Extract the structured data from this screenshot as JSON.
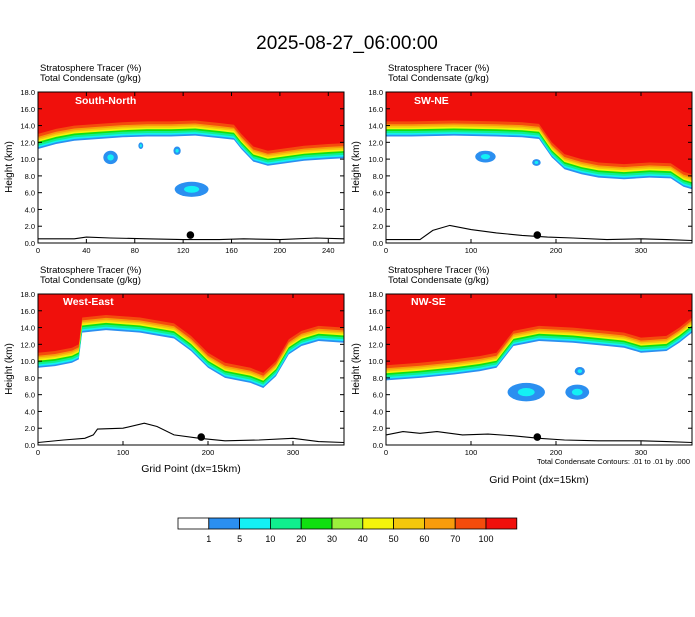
{
  "figure": {
    "title": "2025-08-27_06:00:00",
    "footnote": "Total Condensate Contours: .01 to .01 by .000"
  },
  "colors": {
    "levels": [
      "#ffffff",
      "#2b8ff0",
      "#14f0f4",
      "#10ef8e",
      "#10e010",
      "#9cf03c",
      "#f4f40c",
      "#f4c80c",
      "#f89c0c",
      "#f44c0c",
      "#f0100c"
    ],
    "terrain": "#000000",
    "marker": "#000000"
  },
  "chart_data": [
    {
      "type": "heatmap",
      "panel_label": "South-North",
      "header_lines": [
        "Stratosphere Tracer   (%)",
        "Total Condensate   (g/kg)"
      ],
      "ylabel": "Height (km)",
      "xlabel": "",
      "ylim": [
        0,
        18
      ],
      "xlim": [
        0,
        253
      ],
      "xticks": [
        0,
        40,
        80,
        120,
        160,
        200,
        240
      ],
      "yticks": [
        0.0,
        2.0,
        4.0,
        6.0,
        8.0,
        10.0,
        12.0,
        14.0,
        16.0,
        18.0
      ],
      "marker_x": 126,
      "tropopause": [
        [
          0,
          13.0
        ],
        [
          15,
          13.6
        ],
        [
          30,
          14.0
        ],
        [
          50,
          14.2
        ],
        [
          70,
          14.4
        ],
        [
          90,
          14.5
        ],
        [
          110,
          14.5
        ],
        [
          130,
          14.6
        ],
        [
          150,
          14.3
        ],
        [
          162,
          14.1
        ],
        [
          168,
          13.0
        ],
        [
          178,
          11.5
        ],
        [
          190,
          11.0
        ],
        [
          205,
          11.3
        ],
        [
          220,
          11.6
        ],
        [
          240,
          11.8
        ],
        [
          253,
          11.9
        ]
      ],
      "terrain": [
        [
          0,
          0.5
        ],
        [
          30,
          0.5
        ],
        [
          40,
          0.7
        ],
        [
          60,
          0.6
        ],
        [
          90,
          0.5
        ],
        [
          120,
          0.4
        ],
        [
          150,
          0.4
        ],
        [
          170,
          0.5
        ],
        [
          200,
          0.4
        ],
        [
          230,
          0.6
        ],
        [
          253,
          0.5
        ]
      ],
      "blobs": [
        [
          127,
          6.4,
          14,
          0.9
        ],
        [
          60,
          10.2,
          6,
          0.8
        ],
        [
          115,
          11.0,
          3,
          0.5
        ],
        [
          85,
          11.6,
          2,
          0.4
        ]
      ]
    },
    {
      "type": "heatmap",
      "panel_label": "SW-NE",
      "header_lines": [
        "Stratosphere Tracer   (%)",
        "Total Condensate   (g/kg)"
      ],
      "ylabel": "Height (km)",
      "xlabel": "",
      "ylim": [
        0,
        18
      ],
      "xlim": [
        0,
        360
      ],
      "xticks": [
        0,
        100,
        200,
        300
      ],
      "yticks": [
        0.0,
        2.0,
        4.0,
        6.0,
        8.0,
        10.0,
        12.0,
        14.0,
        16.0,
        18.0
      ],
      "marker_x": 178,
      "tropopause": [
        [
          0,
          14.5
        ],
        [
          30,
          14.5
        ],
        [
          80,
          14.6
        ],
        [
          130,
          14.5
        ],
        [
          160,
          14.4
        ],
        [
          180,
          14.2
        ],
        [
          195,
          12.0
        ],
        [
          210,
          10.6
        ],
        [
          230,
          10.0
        ],
        [
          250,
          9.6
        ],
        [
          280,
          9.4
        ],
        [
          310,
          9.6
        ],
        [
          335,
          9.5
        ],
        [
          350,
          8.5
        ],
        [
          360,
          8.2
        ]
      ],
      "terrain": [
        [
          0,
          0.4
        ],
        [
          40,
          0.4
        ],
        [
          55,
          1.5
        ],
        [
          75,
          2.1
        ],
        [
          100,
          1.6
        ],
        [
          130,
          1.2
        ],
        [
          160,
          0.9
        ],
        [
          190,
          0.7
        ],
        [
          220,
          0.6
        ],
        [
          260,
          0.4
        ],
        [
          300,
          0.5
        ],
        [
          330,
          0.4
        ],
        [
          360,
          0.3
        ]
      ],
      "blobs": [
        [
          117,
          10.3,
          12,
          0.7
        ],
        [
          177,
          9.6,
          5,
          0.4
        ]
      ]
    },
    {
      "type": "heatmap",
      "panel_label": "West-East",
      "header_lines": [
        "Stratosphere Tracer   (%)",
        "Total Condensate   (g/kg)"
      ],
      "ylabel": "Height (km)",
      "xlabel": "Grid Point (dx=15km)",
      "ylim": [
        0,
        18
      ],
      "xlim": [
        0,
        360
      ],
      "xticks": [
        0,
        100,
        200,
        300
      ],
      "yticks": [
        0.0,
        2.0,
        4.0,
        6.0,
        8.0,
        10.0,
        12.0,
        14.0,
        16.0,
        18.0
      ],
      "marker_x": 192,
      "tropopause": [
        [
          0,
          11.0
        ],
        [
          20,
          11.2
        ],
        [
          40,
          11.6
        ],
        [
          48,
          12.0
        ],
        [
          52,
          15.2
        ],
        [
          80,
          15.5
        ],
        [
          120,
          15.2
        ],
        [
          160,
          14.5
        ],
        [
          180,
          13.0
        ],
        [
          200,
          11.0
        ],
        [
          220,
          9.8
        ],
        [
          250,
          9.2
        ],
        [
          265,
          8.6
        ],
        [
          280,
          10.0
        ],
        [
          295,
          12.6
        ],
        [
          310,
          13.6
        ],
        [
          330,
          14.2
        ],
        [
          360,
          14.0
        ]
      ],
      "terrain": [
        [
          0,
          0.3
        ],
        [
          30,
          0.6
        ],
        [
          55,
          0.8
        ],
        [
          65,
          1.2
        ],
        [
          70,
          1.9
        ],
        [
          100,
          2.0
        ],
        [
          125,
          2.6
        ],
        [
          140,
          2.2
        ],
        [
          160,
          1.2
        ],
        [
          190,
          0.8
        ],
        [
          220,
          0.5
        ],
        [
          260,
          0.6
        ],
        [
          300,
          0.8
        ],
        [
          330,
          0.4
        ],
        [
          360,
          0.3
        ]
      ],
      "blobs": [
        [
          0,
          0,
          0,
          0
        ]
      ]
    },
    {
      "type": "heatmap",
      "panel_label": "NW-SE",
      "header_lines": [
        "Stratosphere Tracer   (%)",
        "Total Condensate   (g/kg)"
      ],
      "ylabel": "Height (km)",
      "xlabel": "Grid Point (dx=15km)",
      "ylim": [
        0,
        18
      ],
      "xlim": [
        0,
        360
      ],
      "xticks": [
        0,
        100,
        200,
        300
      ],
      "yticks": [
        0.0,
        2.0,
        4.0,
        6.0,
        8.0,
        10.0,
        12.0,
        14.0,
        16.0,
        18.0
      ],
      "marker_x": 178,
      "tropopause": [
        [
          0,
          9.5
        ],
        [
          40,
          9.8
        ],
        [
          80,
          10.2
        ],
        [
          110,
          10.6
        ],
        [
          130,
          11.0
        ],
        [
          150,
          13.6
        ],
        [
          180,
          14.2
        ],
        [
          220,
          14.0
        ],
        [
          260,
          13.6
        ],
        [
          280,
          13.4
        ],
        [
          300,
          12.8
        ],
        [
          330,
          13.0
        ],
        [
          345,
          14.0
        ],
        [
          360,
          15.2
        ]
      ],
      "terrain": [
        [
          0,
          1.2
        ],
        [
          20,
          1.6
        ],
        [
          40,
          1.4
        ],
        [
          60,
          1.6
        ],
        [
          90,
          1.2
        ],
        [
          120,
          1.3
        ],
        [
          150,
          1.1
        ],
        [
          180,
          0.8
        ],
        [
          210,
          0.6
        ],
        [
          250,
          0.5
        ],
        [
          300,
          0.5
        ],
        [
          330,
          0.4
        ],
        [
          360,
          0.3
        ]
      ],
      "blobs": [
        [
          165,
          6.3,
          22,
          1.1
        ],
        [
          225,
          6.3,
          14,
          0.9
        ],
        [
          228,
          8.8,
          6,
          0.5
        ]
      ]
    }
  ],
  "legend": {
    "labels": [
      "1",
      "5",
      "10",
      "20",
      "30",
      "40",
      "50",
      "60",
      "70",
      "100"
    ]
  }
}
